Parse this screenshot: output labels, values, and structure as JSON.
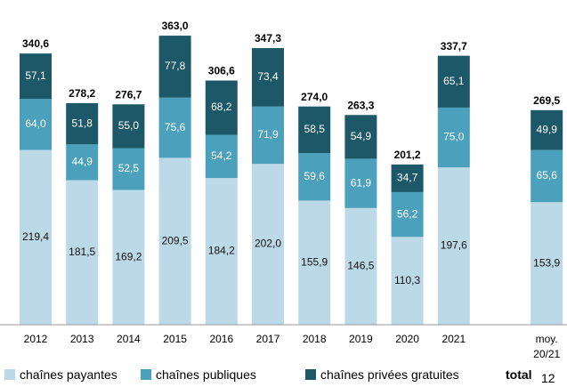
{
  "chart_data": {
    "type": "bar",
    "stacked": true,
    "categories": [
      "2012",
      "2013",
      "2014",
      "2015",
      "2016",
      "2017",
      "2018",
      "2019",
      "2020",
      "2021",
      "moy. 20/21"
    ],
    "series": [
      {
        "name": "chaînes payantes",
        "color": "#bcd9e8",
        "values": [
          219.4,
          181.5,
          169.2,
          209.5,
          184.2,
          202.0,
          155.9,
          146.5,
          110.3,
          197.6,
          153.9
        ],
        "value_labels": [
          "219,4",
          "181,5",
          "169,2",
          "209,5",
          "184,2",
          "202,0",
          "155,9",
          "146,5",
          "110,3",
          "197,6",
          "153,9"
        ]
      },
      {
        "name": "chaînes publiques",
        "color": "#4ba1bb",
        "values": [
          64.0,
          44.9,
          52.5,
          75.6,
          54.2,
          71.9,
          59.6,
          61.9,
          56.2,
          75.0,
          65.6
        ],
        "value_labels": [
          "64,0",
          "44,9",
          "52,5",
          "75,6",
          "54,2",
          "71,9",
          "59,6",
          "61,9",
          "56,2",
          "75,0",
          "65,6"
        ]
      },
      {
        "name": "chaînes privées gratuites",
        "color": "#1c5868",
        "values": [
          57.1,
          51.8,
          55.0,
          77.8,
          68.2,
          73.4,
          58.5,
          54.9,
          34.7,
          65.1,
          49.9
        ],
        "value_labels": [
          "57,1",
          "51,8",
          "55,0",
          "77,8",
          "68,2",
          "73,4",
          "58,5",
          "54,9",
          "34,7",
          "65,1",
          "49,9"
        ]
      }
    ],
    "totals": {
      "values": [
        340.6,
        278.2,
        276.7,
        363.0,
        306.6,
        347.3,
        274.0,
        263.3,
        201.2,
        337.7,
        269.5
      ],
      "value_labels": [
        "340,6",
        "278,2",
        "276,7",
        "363,0",
        "306,6",
        "347,3",
        "274,0",
        "263,3",
        "201,2",
        "337,7",
        "269,5"
      ]
    },
    "total_legend_label": "total",
    "page_number": "12"
  }
}
